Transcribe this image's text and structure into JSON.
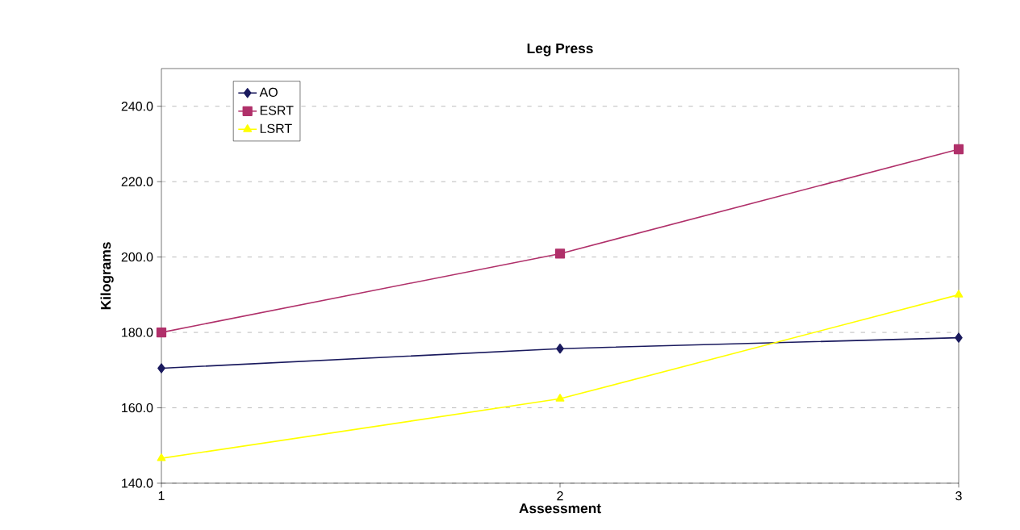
{
  "chart_data": {
    "type": "line",
    "title": "Leg Press",
    "xlabel": "Assessment",
    "ylabel": "Kilograms",
    "x": [
      1,
      2,
      3
    ],
    "xlim": [
      1,
      3
    ],
    "xticks": [
      1,
      2,
      3
    ],
    "ylim": [
      140,
      250
    ],
    "yticks": [
      {
        "value": 140,
        "label": "140.0"
      },
      {
        "value": 160,
        "label": "160.0"
      },
      {
        "value": 180,
        "label": "180.0"
      },
      {
        "value": 200,
        "label": "200.0"
      },
      {
        "value": 220,
        "label": "220.0"
      },
      {
        "value": 240,
        "label": "240.0"
      }
    ],
    "grid": "y",
    "legend": "top left",
    "line_style": "solid",
    "series": [
      {
        "name": "AO",
        "color": "#1a1a5e",
        "marker": "diamond",
        "values": [
          170.5,
          175.7,
          178.6
        ]
      },
      {
        "name": "ESRT",
        "color": "#b0306a",
        "marker": "square",
        "values": [
          180.0,
          200.9,
          228.6
        ]
      },
      {
        "name": "LSRT",
        "color": "#ffff00",
        "marker": "triangle",
        "values": [
          146.6,
          162.4,
          190.0
        ]
      }
    ]
  }
}
